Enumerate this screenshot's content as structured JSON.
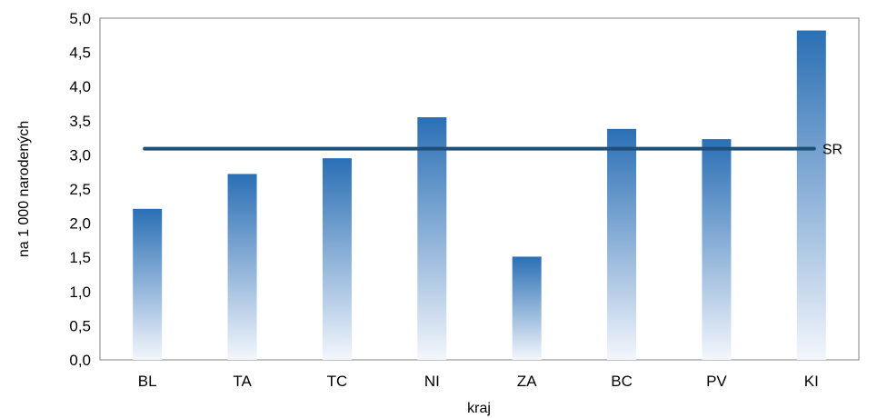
{
  "chart_data": {
    "type": "bar",
    "categories": [
      "BL",
      "TA",
      "TC",
      "NI",
      "ZA",
      "BC",
      "PV",
      "KI"
    ],
    "values": [
      2.21,
      2.72,
      2.95,
      3.55,
      1.51,
      3.38,
      3.23,
      4.82
    ],
    "xlabel": "kraj",
    "ylabel": "na 1 000 narodených",
    "ylim": [
      0,
      5
    ],
    "yticks": [
      "0,0",
      "0,5",
      "1,0",
      "1,5",
      "2,0",
      "2,5",
      "3,0",
      "3,5",
      "4,0",
      "4,5",
      "5,0"
    ],
    "reference_line": {
      "label": "SR",
      "value": 3.09
    },
    "grid": false,
    "legend": "none",
    "colors": {
      "bar_top": "#2a6fb5",
      "bar_bottom": "#f3f6fc",
      "reference": "#1f4e79",
      "frame": "#808080"
    }
  }
}
